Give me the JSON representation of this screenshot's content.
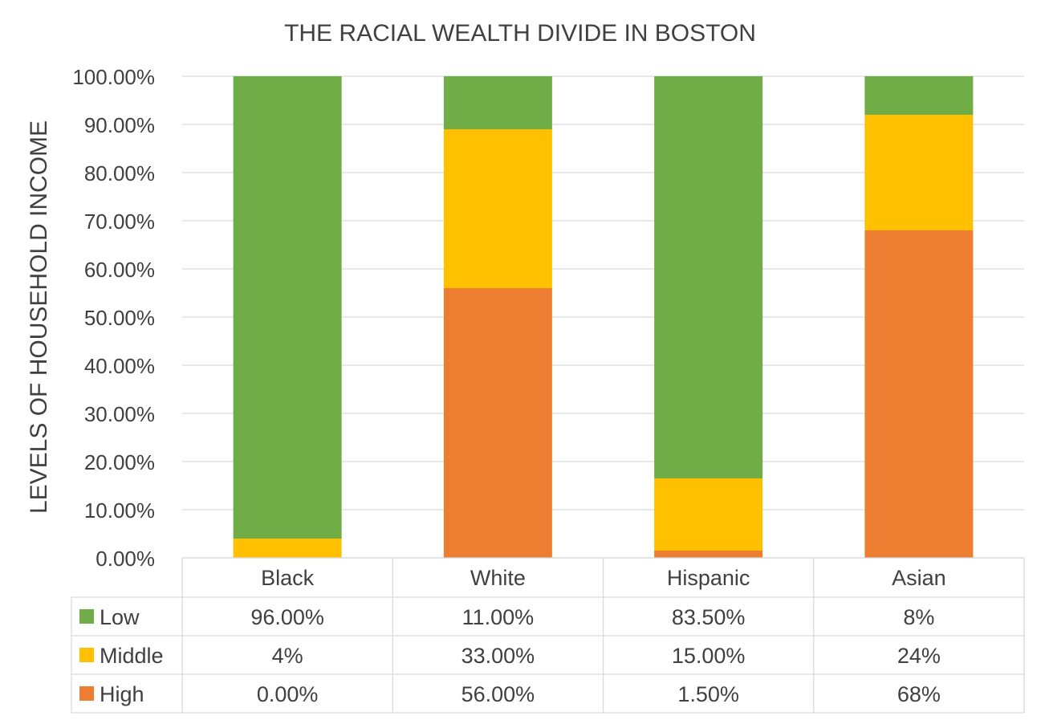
{
  "chart_data": {
    "type": "bar",
    "stacked": true,
    "title": "THE RACIAL WEALTH DIVIDE IN BOSTON",
    "xlabel": "",
    "ylabel": "LEVELS OF HOUSEHOLD INCOME",
    "ylim": [
      0,
      100
    ],
    "y_ticks": [
      "0.00%",
      "10.00%",
      "20.00%",
      "30.00%",
      "40.00%",
      "50.00%",
      "60.00%",
      "70.00%",
      "80.00%",
      "90.00%",
      "100.00%"
    ],
    "grid": true,
    "legend": "data-table",
    "categories": [
      "Black",
      "White",
      "Hispanic",
      "Asian"
    ],
    "series": [
      {
        "name": "High",
        "color": "#ED7D31",
        "values": [
          0,
          56,
          1.5,
          68
        ],
        "labels": [
          "0.00%",
          "56.00%",
          "1.50%",
          "68%"
        ]
      },
      {
        "name": "Middle",
        "color": "#FFC000",
        "values": [
          4,
          33,
          15,
          24
        ],
        "labels": [
          "4%",
          "33.00%",
          "15.00%",
          "24%"
        ]
      },
      {
        "name": "Low",
        "color": "#70AD47",
        "values": [
          96,
          11,
          83.5,
          8
        ],
        "labels": [
          "96.00%",
          "11.00%",
          "83.50%",
          "8%"
        ]
      }
    ],
    "table_row_order": [
      "Low",
      "Middle",
      "High"
    ]
  }
}
